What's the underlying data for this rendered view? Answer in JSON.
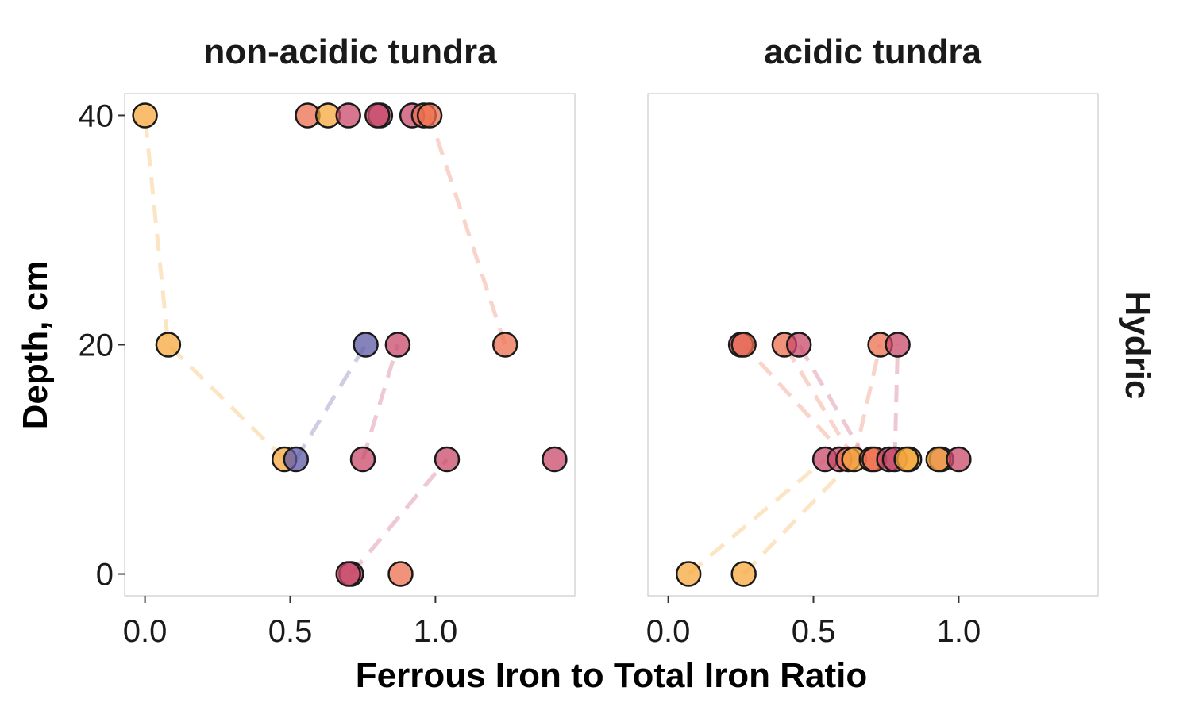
{
  "chart_data": {
    "type": "scatter",
    "xlabel": "Ferrous Iron to Total Iron Ratio",
    "ylabel": "Depth, cm",
    "row_strip_label": "Hydric",
    "xlim": [
      -0.07,
      1.48
    ],
    "ylim": [
      41.9,
      -1.9
    ],
    "x_ticks": [
      0.0,
      0.5,
      1.0
    ],
    "x_tick_labels": [
      "0.0",
      "0.5",
      "1.0"
    ],
    "y_ticks": [
      0,
      20,
      40
    ],
    "y_tick_labels": [
      "0",
      "20",
      "40"
    ],
    "grid": false,
    "colors": {
      "orange": "#f5a83e",
      "salmon": "#ec6f4e",
      "rose": "#c84a6a",
      "purple": "#5d5aa6"
    },
    "panels": [
      {
        "title": "non-acidic tundra",
        "points": [
          {
            "x": 0.71,
            "y": 0,
            "color": "rose"
          },
          {
            "x": 0.7,
            "y": 0,
            "color": "rose"
          },
          {
            "x": 0.88,
            "y": 0,
            "color": "salmon"
          },
          {
            "x": 0.48,
            "y": 10,
            "color": "orange"
          },
          {
            "x": 0.52,
            "y": 10,
            "color": "purple"
          },
          {
            "x": 0.75,
            "y": 10,
            "color": "rose"
          },
          {
            "x": 1.04,
            "y": 10,
            "color": "rose"
          },
          {
            "x": 1.41,
            "y": 10,
            "color": "rose"
          },
          {
            "x": 0.08,
            "y": 20,
            "color": "orange"
          },
          {
            "x": 0.76,
            "y": 20,
            "color": "purple"
          },
          {
            "x": 0.87,
            "y": 20,
            "color": "rose"
          },
          {
            "x": 1.24,
            "y": 20,
            "color": "salmon"
          },
          {
            "x": 0.0,
            "y": 40,
            "color": "orange"
          },
          {
            "x": 0.56,
            "y": 40,
            "color": "salmon"
          },
          {
            "x": 0.63,
            "y": 40,
            "color": "orange"
          },
          {
            "x": 0.7,
            "y": 40,
            "color": "rose"
          },
          {
            "x": 0.81,
            "y": 40,
            "color": "rose"
          },
          {
            "x": 0.8,
            "y": 40,
            "color": "rose"
          },
          {
            "x": 0.92,
            "y": 40,
            "color": "rose"
          },
          {
            "x": 0.96,
            "y": 40,
            "color": "salmon"
          },
          {
            "x": 0.98,
            "y": 40,
            "color": "salmon"
          }
        ],
        "links": [
          {
            "color": "orange",
            "points": [
              [
                0.48,
                10
              ],
              [
                0.08,
                20
              ],
              [
                0.0,
                40
              ]
            ]
          },
          {
            "color": "purple",
            "points": [
              [
                0.52,
                10
              ],
              [
                0.76,
                20
              ]
            ]
          },
          {
            "color": "rose",
            "points": [
              [
                0.71,
                0
              ],
              [
                1.04,
                10
              ]
            ]
          },
          {
            "color": "rose",
            "points": [
              [
                0.75,
                10
              ],
              [
                0.87,
                20
              ]
            ]
          },
          {
            "color": "salmon",
            "points": [
              [
                1.24,
                20
              ],
              [
                0.98,
                40
              ]
            ]
          }
        ]
      },
      {
        "title": "acidic tundra",
        "points": [
          {
            "x": 0.07,
            "y": 0,
            "color": "orange"
          },
          {
            "x": 0.26,
            "y": 0,
            "color": "orange"
          },
          {
            "x": 0.54,
            "y": 10,
            "color": "rose"
          },
          {
            "x": 0.59,
            "y": 10,
            "color": "rose"
          },
          {
            "x": 0.62,
            "y": 10,
            "color": "salmon"
          },
          {
            "x": 0.64,
            "y": 10,
            "color": "orange"
          },
          {
            "x": 0.7,
            "y": 10,
            "color": "salmon"
          },
          {
            "x": 0.71,
            "y": 10,
            "color": "salmon"
          },
          {
            "x": 0.76,
            "y": 10,
            "color": "rose"
          },
          {
            "x": 0.78,
            "y": 10,
            "color": "rose"
          },
          {
            "x": 0.83,
            "y": 10,
            "color": "orange"
          },
          {
            "x": 0.82,
            "y": 10,
            "color": "orange"
          },
          {
            "x": 0.94,
            "y": 10,
            "color": "rose"
          },
          {
            "x": 0.93,
            "y": 10,
            "color": "orange"
          },
          {
            "x": 1.0,
            "y": 10,
            "color": "rose"
          },
          {
            "x": 0.25,
            "y": 20,
            "color": "rose"
          },
          {
            "x": 0.26,
            "y": 20,
            "color": "salmon"
          },
          {
            "x": 0.4,
            "y": 20,
            "color": "salmon"
          },
          {
            "x": 0.45,
            "y": 20,
            "color": "rose"
          },
          {
            "x": 0.73,
            "y": 20,
            "color": "salmon"
          },
          {
            "x": 0.79,
            "y": 20,
            "color": "rose"
          }
        ],
        "links": [
          {
            "color": "orange",
            "points": [
              [
                0.07,
                0
              ],
              [
                0.54,
                10
              ]
            ]
          },
          {
            "color": "orange",
            "points": [
              [
                0.26,
                0
              ],
              [
                0.64,
                10
              ]
            ]
          },
          {
            "color": "salmon",
            "points": [
              [
                0.62,
                10
              ],
              [
                0.26,
                20
              ]
            ]
          },
          {
            "color": "salmon",
            "points": [
              [
                0.64,
                10
              ],
              [
                0.4,
                20
              ]
            ]
          },
          {
            "color": "rose",
            "points": [
              [
                0.68,
                10
              ],
              [
                0.45,
                20
              ]
            ]
          },
          {
            "color": "salmon",
            "points": [
              [
                0.64,
                10
              ],
              [
                0.73,
                20
              ]
            ]
          },
          {
            "color": "rose",
            "points": [
              [
                0.78,
                10
              ],
              [
                0.79,
                20
              ]
            ]
          }
        ]
      }
    ]
  }
}
